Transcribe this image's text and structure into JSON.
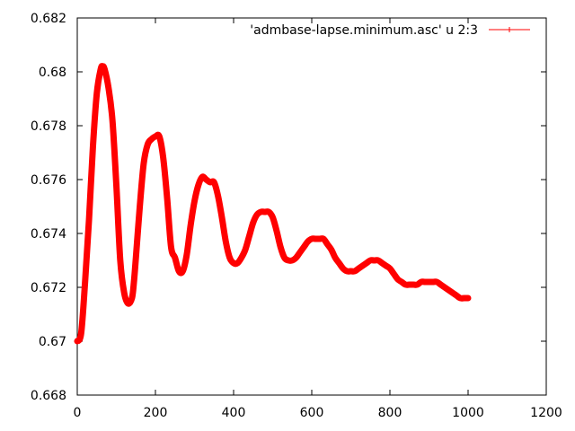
{
  "chart_data": {
    "type": "line",
    "title": "",
    "xlabel": "",
    "ylabel": "",
    "xlim": [
      0,
      1200
    ],
    "ylim": [
      0.668,
      0.682
    ],
    "x_ticks": [
      "0",
      "200",
      "400",
      "600",
      "800",
      "1000",
      "1200"
    ],
    "y_ticks": [
      "0.668",
      "0.67",
      "0.672",
      "0.674",
      "0.676",
      "0.678",
      "0.68",
      "0.682"
    ],
    "grid": false,
    "legend_position": "top-right",
    "series": [
      {
        "name": "'admbase-lapse.minimum.asc' u 2:3",
        "color": "#ff0000",
        "marker": "plus",
        "x": [
          0,
          10,
          20,
          30,
          40,
          50,
          60,
          65,
          70,
          80,
          90,
          100,
          110,
          120,
          130,
          140,
          145,
          150,
          160,
          170,
          180,
          190,
          200,
          210,
          220,
          230,
          240,
          250,
          260,
          270,
          280,
          290,
          300,
          310,
          320,
          330,
          340,
          350,
          360,
          370,
          380,
          390,
          400,
          410,
          420,
          430,
          440,
          450,
          460,
          470,
          480,
          490,
          500,
          510,
          520,
          530,
          540,
          550,
          560,
          570,
          580,
          590,
          600,
          610,
          620,
          630,
          640,
          650,
          660,
          670,
          680,
          690,
          700,
          710,
          720,
          730,
          740,
          750,
          760,
          770,
          780,
          790,
          800,
          810,
          820,
          830,
          840,
          850,
          860,
          870,
          880,
          890,
          900,
          910,
          920,
          930,
          940,
          950,
          960,
          970,
          980,
          990,
          1000
        ],
        "y": [
          0.67,
          0.6703,
          0.6722,
          0.6745,
          0.6772,
          0.6792,
          0.6801,
          0.6802,
          0.6801,
          0.6794,
          0.6782,
          0.6758,
          0.673,
          0.6718,
          0.6714,
          0.6716,
          0.6722,
          0.6731,
          0.675,
          0.6766,
          0.6773,
          0.6775,
          0.6776,
          0.6776,
          0.6768,
          0.6753,
          0.6735,
          0.6731,
          0.6726,
          0.6726,
          0.6732,
          0.6743,
          0.6752,
          0.6758,
          0.6761,
          0.676,
          0.6759,
          0.6759,
          0.6754,
          0.6746,
          0.6737,
          0.6731,
          0.6729,
          0.6729,
          0.6731,
          0.6734,
          0.6739,
          0.6744,
          0.6747,
          0.6748,
          0.6748,
          0.6748,
          0.6746,
          0.6741,
          0.6735,
          0.6731,
          0.673,
          0.673,
          0.6731,
          0.6733,
          0.6735,
          0.6737,
          0.6738,
          0.6738,
          0.6738,
          0.6738,
          0.6736,
          0.6734,
          0.6731,
          0.6729,
          0.6727,
          0.6726,
          0.6726,
          0.6726,
          0.6727,
          0.6728,
          0.6729,
          0.673,
          0.673,
          0.673,
          0.6729,
          0.6728,
          0.6727,
          0.6725,
          0.6723,
          0.6722,
          0.6721,
          0.6721,
          0.6721,
          0.6721,
          0.6722,
          0.6722,
          0.6722,
          0.6722,
          0.6722,
          0.6721,
          0.672,
          0.6719,
          0.6718,
          0.6717,
          0.6716,
          0.6716,
          0.6716
        ]
      }
    ]
  }
}
